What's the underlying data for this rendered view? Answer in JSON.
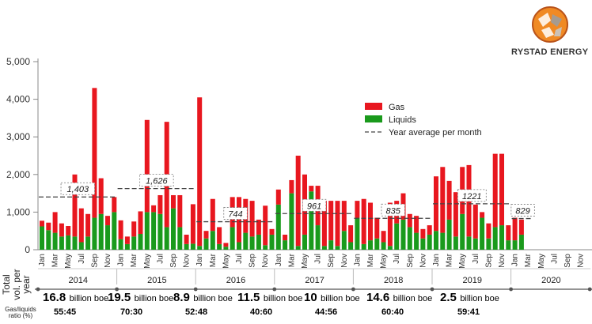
{
  "brand": {
    "name": "RYSTAD ENERGY"
  },
  "colors": {
    "gas": "#e8171f",
    "liquids": "#1a9a1c",
    "average": "#444444",
    "axis": "#888888"
  },
  "chart_data": {
    "type": "bar",
    "stacked": true,
    "ylim": [
      0,
      5000
    ],
    "yticks": [
      "0",
      "1,000",
      "2,000",
      "3,000",
      "4,000",
      "5,000"
    ],
    "month_tick_labels": [
      "Jan",
      "Mar",
      "May",
      "Jul",
      "Sep",
      "Nov"
    ],
    "years": [
      "2014",
      "2015",
      "2016",
      "2017",
      "2018",
      "2019",
      "2020"
    ],
    "legend": {
      "position": "right",
      "items": [
        "Gas",
        "Liquids",
        "Year average per month"
      ]
    },
    "series": [
      {
        "name": "Liquids",
        "values": [
          620,
          520,
          450,
          350,
          380,
          350,
          200,
          350,
          850,
          950,
          650,
          1000,
          280,
          150,
          350,
          420,
          1000,
          1000,
          950,
          600,
          1100,
          600,
          150,
          160,
          100,
          300,
          500,
          150,
          80,
          600,
          200,
          450,
          350,
          400,
          120,
          400,
          1200,
          250,
          1500,
          100,
          400,
          1550,
          650,
          100,
          250,
          100,
          500,
          200,
          850,
          150,
          250,
          300,
          200,
          100,
          700,
          800,
          600,
          450,
          300,
          400,
          500,
          450,
          800,
          350,
          950,
          350,
          300,
          850,
          300,
          600,
          650,
          250,
          250,
          400
        ]
      },
      {
        "name": "Gas",
        "values": [
          150,
          200,
          550,
          350,
          250,
          1650,
          900,
          600,
          3450,
          950,
          250,
          400,
          500,
          200,
          400,
          600,
          2450,
          180,
          500,
          2800,
          350,
          850,
          250,
          1050,
          3950,
          200,
          850,
          450,
          100,
          800,
          1200,
          900,
          950,
          400,
          1050,
          150,
          400,
          150,
          350,
          2400,
          1600,
          150,
          1050,
          1200,
          1050,
          1200,
          800,
          450,
          450,
          1200,
          1000,
          550,
          300,
          1150,
          600,
          700,
          350,
          450,
          250,
          250,
          1450,
          1750,
          1030,
          1180,
          1250,
          1900,
          900,
          150,
          400,
          1950,
          1900,
          400,
          600,
          400
        ]
      },
      {
        "name": "Year average per month",
        "values": [
          1403,
          1626,
          744,
          961,
          835,
          1221,
          829
        ]
      }
    ],
    "average_labels": [
      "1,403",
      "1,626",
      "744",
      "961",
      "835",
      "1221",
      "829"
    ]
  },
  "summary": {
    "volume_axis_label": "Total vol. per year",
    "ratio_axis_label": "Gas/liquids ratio (%)",
    "unit": "billion boe",
    "volumes": [
      "16.8",
      "19.5",
      "8.9",
      "11.5",
      "10",
      "14.6",
      "2.5"
    ],
    "ratios": [
      "55:45",
      "70:30",
      "52:48",
      "40:60",
      "44:56",
      "60:40",
      "59:41"
    ]
  }
}
